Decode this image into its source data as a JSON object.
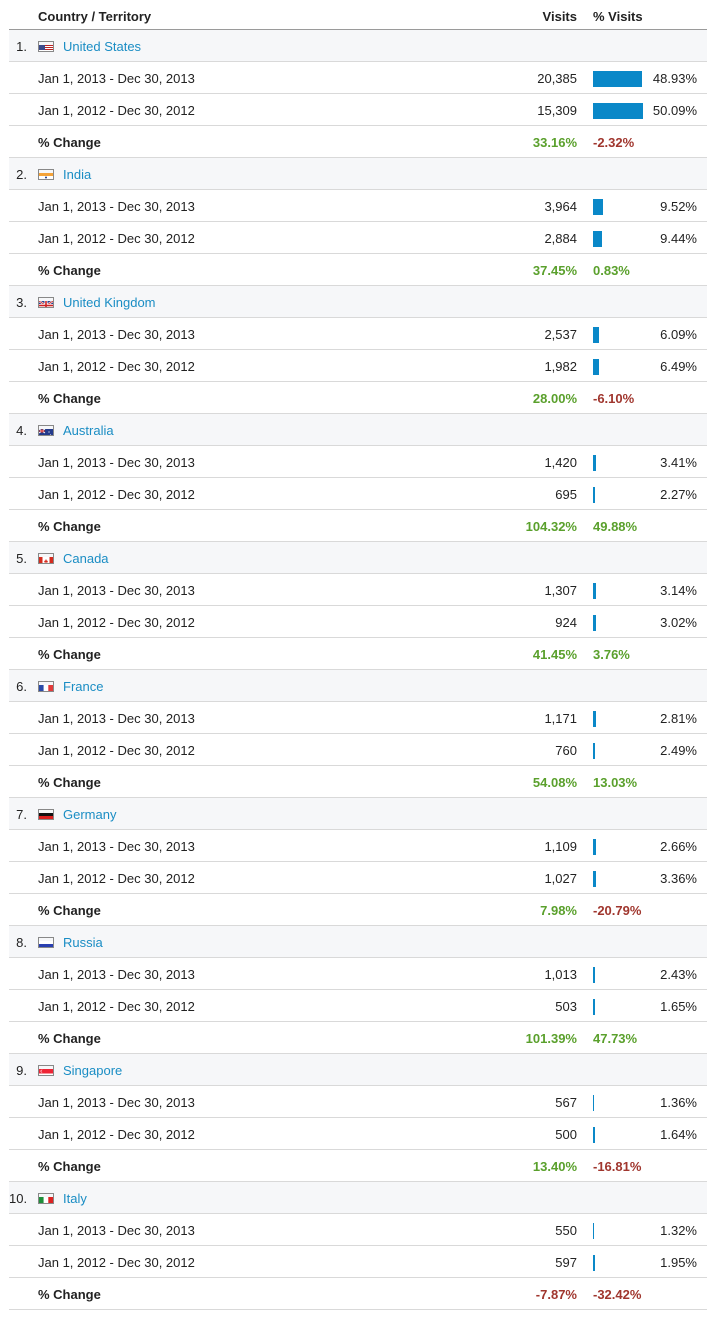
{
  "header": {
    "country": "Country / Territory",
    "visits": "Visits",
    "pct_visits": "% Visits"
  },
  "colors": {
    "link": "#1a8dc4",
    "bar": "#0a88c8",
    "positive": "#5aa02c",
    "negative": "#a0362e"
  },
  "rows": [
    {
      "rank": "1.",
      "country": "United States",
      "flag": "flag-us-icon",
      "r1": {
        "date": "Jan 1, 2013 - Dec 30, 2013",
        "visits": "20,385",
        "pct": "48.93%",
        "fraction": 0.4893
      },
      "r2": {
        "date": "Jan 1, 2012 - Dec 30, 2012",
        "visits": "15,309",
        "pct": "50.09%",
        "fraction": 0.5009
      },
      "change": {
        "label": "% Change",
        "visits": "33.16%",
        "pct": "-2.32%"
      }
    },
    {
      "rank": "2.",
      "country": "India",
      "flag": "flag-in-icon",
      "r1": {
        "date": "Jan 1, 2013 - Dec 30, 2013",
        "visits": "3,964",
        "pct": "9.52%",
        "fraction": 0.0952
      },
      "r2": {
        "date": "Jan 1, 2012 - Dec 30, 2012",
        "visits": "2,884",
        "pct": "9.44%",
        "fraction": 0.0944
      },
      "change": {
        "label": "% Change",
        "visits": "37.45%",
        "pct": "0.83%"
      }
    },
    {
      "rank": "3.",
      "country": "United Kingdom",
      "flag": "flag-gb-icon",
      "r1": {
        "date": "Jan 1, 2013 - Dec 30, 2013",
        "visits": "2,537",
        "pct": "6.09%",
        "fraction": 0.0609
      },
      "r2": {
        "date": "Jan 1, 2012 - Dec 30, 2012",
        "visits": "1,982",
        "pct": "6.49%",
        "fraction": 0.0649
      },
      "change": {
        "label": "% Change",
        "visits": "28.00%",
        "pct": "-6.10%"
      }
    },
    {
      "rank": "4.",
      "country": "Australia",
      "flag": "flag-au-icon",
      "r1": {
        "date": "Jan 1, 2013 - Dec 30, 2013",
        "visits": "1,420",
        "pct": "3.41%",
        "fraction": 0.0341
      },
      "r2": {
        "date": "Jan 1, 2012 - Dec 30, 2012",
        "visits": "695",
        "pct": "2.27%",
        "fraction": 0.0227
      },
      "change": {
        "label": "% Change",
        "visits": "104.32%",
        "pct": "49.88%"
      }
    },
    {
      "rank": "5.",
      "country": "Canada",
      "flag": "flag-ca-icon",
      "r1": {
        "date": "Jan 1, 2013 - Dec 30, 2013",
        "visits": "1,307",
        "pct": "3.14%",
        "fraction": 0.0314
      },
      "r2": {
        "date": "Jan 1, 2012 - Dec 30, 2012",
        "visits": "924",
        "pct": "3.02%",
        "fraction": 0.0302
      },
      "change": {
        "label": "% Change",
        "visits": "41.45%",
        "pct": "3.76%"
      }
    },
    {
      "rank": "6.",
      "country": "France",
      "flag": "flag-fr-icon",
      "r1": {
        "date": "Jan 1, 2013 - Dec 30, 2013",
        "visits": "1,171",
        "pct": "2.81%",
        "fraction": 0.0281
      },
      "r2": {
        "date": "Jan 1, 2012 - Dec 30, 2012",
        "visits": "760",
        "pct": "2.49%",
        "fraction": 0.0249
      },
      "change": {
        "label": "% Change",
        "visits": "54.08%",
        "pct": "13.03%"
      }
    },
    {
      "rank": "7.",
      "country": "Germany",
      "flag": "flag-de-icon",
      "r1": {
        "date": "Jan 1, 2013 - Dec 30, 2013",
        "visits": "1,109",
        "pct": "2.66%",
        "fraction": 0.0266
      },
      "r2": {
        "date": "Jan 1, 2012 - Dec 30, 2012",
        "visits": "1,027",
        "pct": "3.36%",
        "fraction": 0.0336
      },
      "change": {
        "label": "% Change",
        "visits": "7.98%",
        "pct": "-20.79%"
      }
    },
    {
      "rank": "8.",
      "country": "Russia",
      "flag": "flag-ru-icon",
      "r1": {
        "date": "Jan 1, 2013 - Dec 30, 2013",
        "visits": "1,013",
        "pct": "2.43%",
        "fraction": 0.0243
      },
      "r2": {
        "date": "Jan 1, 2012 - Dec 30, 2012",
        "visits": "503",
        "pct": "1.65%",
        "fraction": 0.0165
      },
      "change": {
        "label": "% Change",
        "visits": "101.39%",
        "pct": "47.73%"
      }
    },
    {
      "rank": "9.",
      "country": "Singapore",
      "flag": "flag-sg-icon",
      "r1": {
        "date": "Jan 1, 2013 - Dec 30, 2013",
        "visits": "567",
        "pct": "1.36%",
        "fraction": 0.0136
      },
      "r2": {
        "date": "Jan 1, 2012 - Dec 30, 2012",
        "visits": "500",
        "pct": "1.64%",
        "fraction": 0.0164
      },
      "change": {
        "label": "% Change",
        "visits": "13.40%",
        "pct": "-16.81%"
      }
    },
    {
      "rank": "10.",
      "country": "Italy",
      "flag": "flag-it-icon",
      "r1": {
        "date": "Jan 1, 2013 - Dec 30, 2013",
        "visits": "550",
        "pct": "1.32%",
        "fraction": 0.0132
      },
      "r2": {
        "date": "Jan 1, 2012 - Dec 30, 2012",
        "visits": "597",
        "pct": "1.95%",
        "fraction": 0.0195
      },
      "change": {
        "label": "% Change",
        "visits": "-7.87%",
        "pct": "-32.42%"
      }
    }
  ]
}
